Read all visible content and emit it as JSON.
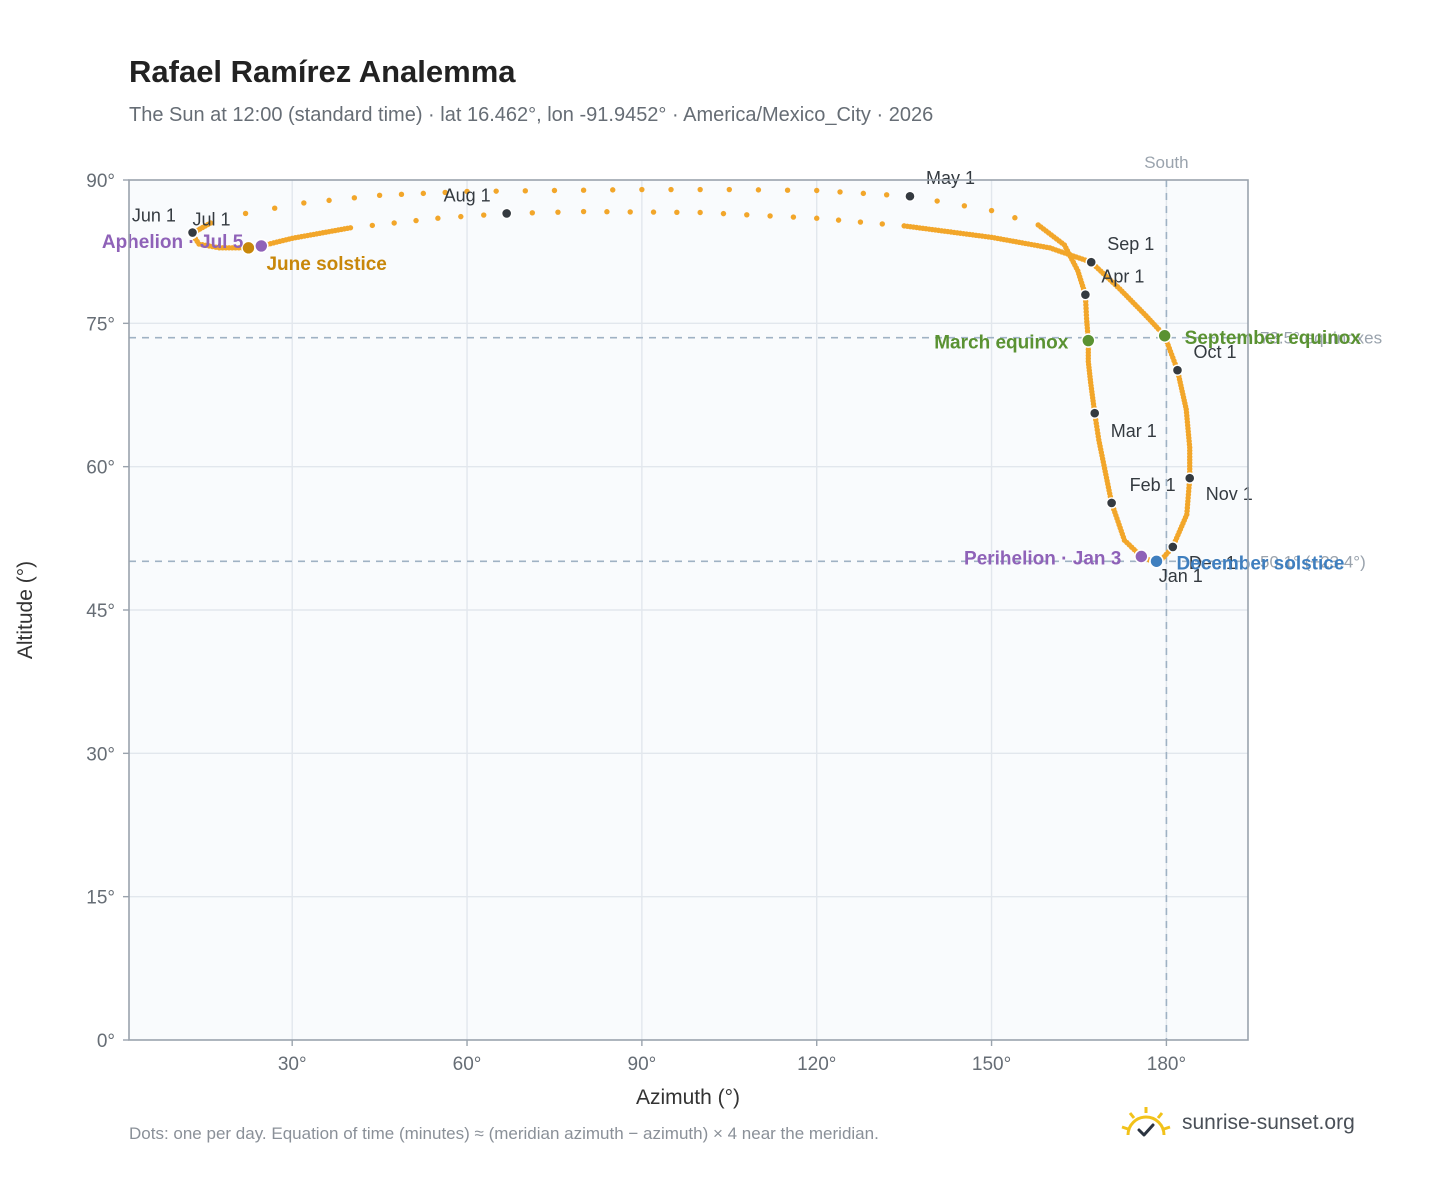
{
  "title": "Rafael Ramírez Analemma",
  "subtitle": "The Sun at 12:00 (standard time) · lat 16.462°, lon -91.9452° · America/Mexico_City · 2026",
  "footnote": "Dots: one per day. Equation of time (minutes) ≈ (meridian azimuth − azimuth) × 4 near the meridian.",
  "brand": {
    "name": "sunrise-sunset.org",
    "logo_icon": "sun-check-icon"
  },
  "colors": {
    "path": "#f2a62a",
    "month_marker": "#343a40",
    "aphelion_perihelion": "#8f62b8",
    "june_solstice": "#c8870a",
    "equinox": "#5a9232",
    "december_solstice": "#3f7fbf",
    "reference": "#9fb2c4",
    "plot_bg": "#f9fbfd"
  },
  "chart_data": {
    "type": "scatter",
    "xlabel": "Azimuth (°)",
    "ylabel": "Altitude (°)",
    "xlim": [
      2,
      194
    ],
    "ylim": [
      0,
      90
    ],
    "xticks": [
      "30°",
      "60°",
      "90°",
      "120°",
      "150°",
      "180°"
    ],
    "yticks": [
      "0°",
      "15°",
      "30°",
      "45°",
      "60°",
      "75°",
      "90°"
    ],
    "grid": true,
    "south_label": "South",
    "south_azimuth": 180,
    "reference_lines": [
      {
        "altitude": 73.5,
        "label": "73.5° equinoxes"
      },
      {
        "altitude": 50.1,
        "label": "50.1° (−23.4°)"
      }
    ],
    "months": [
      {
        "label": "Jan 1",
        "az": 178.0,
        "alt": 50.0
      },
      {
        "label": "Feb 1",
        "az": 170.6,
        "alt": 56.2
      },
      {
        "label": "Mar 1",
        "az": 167.7,
        "alt": 65.6
      },
      {
        "label": "Apr 1",
        "az": 166.1,
        "alt": 78.0
      },
      {
        "label": "May 1",
        "az": 136.0,
        "alt": 88.3
      },
      {
        "label": "Jun 1",
        "az": 12.8,
        "alt": 84.4
      },
      {
        "label": "Jul 1",
        "az": 12.9,
        "alt": 84.5
      },
      {
        "label": "Aug 1",
        "az": 66.8,
        "alt": 86.5
      },
      {
        "label": "Sep 1",
        "az": 167.1,
        "alt": 81.4
      },
      {
        "label": "Oct 1",
        "az": 181.9,
        "alt": 70.1
      },
      {
        "label": "Nov 1",
        "az": 184.0,
        "alt": 58.8
      },
      {
        "label": "Dec 1",
        "az": 181.1,
        "alt": 51.6
      }
    ],
    "events": [
      {
        "label": "March equinox",
        "az": 166.6,
        "alt": 73.2,
        "kind": "equinox"
      },
      {
        "label": "September equinox",
        "az": 179.7,
        "alt": 73.7,
        "kind": "equinox"
      },
      {
        "label": "June solstice",
        "az": 22.5,
        "alt": 82.9,
        "kind": "june_solstice"
      },
      {
        "label": "December solstice",
        "az": 178.3,
        "alt": 50.1,
        "kind": "december_solstice"
      },
      {
        "label": "Aphelion · Jul 5",
        "az": 24.7,
        "alt": 83.1,
        "kind": "aphelion_perihelion"
      },
      {
        "label": "Perihelion · Jan 3",
        "az": 175.7,
        "alt": 50.6,
        "kind": "aphelion_perihelion"
      }
    ],
    "path_points": [
      [
        178.0,
        50.0
      ],
      [
        175.7,
        50.6
      ],
      [
        172.8,
        52.3
      ],
      [
        170.6,
        56.2
      ],
      [
        169.5,
        59.5
      ],
      [
        168.4,
        62.8
      ],
      [
        167.7,
        65.6
      ],
      [
        167.0,
        68.8
      ],
      [
        166.6,
        71.0
      ],
      [
        166.6,
        73.2
      ],
      [
        166.3,
        75.5
      ],
      [
        166.1,
        78.0
      ],
      [
        164.8,
        80.5
      ],
      [
        162.5,
        83.2
      ],
      [
        158.0,
        85.3
      ],
      [
        150.0,
        86.8
      ],
      [
        136.0,
        88.3
      ],
      [
        120.0,
        88.9
      ],
      [
        105.0,
        89.0
      ],
      [
        90.0,
        89.0
      ],
      [
        75.0,
        88.9
      ],
      [
        60.0,
        88.8
      ],
      [
        45.0,
        88.4
      ],
      [
        32.0,
        87.6
      ],
      [
        22.0,
        86.5
      ],
      [
        16.0,
        85.5
      ],
      [
        12.8,
        84.4
      ],
      [
        14.0,
        83.3
      ],
      [
        17.5,
        82.9
      ],
      [
        22.5,
        82.9
      ],
      [
        24.7,
        83.1
      ],
      [
        30.0,
        83.9
      ],
      [
        40.0,
        85.0
      ],
      [
        55.0,
        86.0
      ],
      [
        66.8,
        86.5
      ],
      [
        80.0,
        86.7
      ],
      [
        100.0,
        86.6
      ],
      [
        120.0,
        86.0
      ],
      [
        135.0,
        85.2
      ],
      [
        150.0,
        84.0
      ],
      [
        160.0,
        82.9
      ],
      [
        167.1,
        81.4
      ],
      [
        172.0,
        78.6
      ],
      [
        176.5,
        75.8
      ],
      [
        179.7,
        73.7
      ],
      [
        181.9,
        70.1
      ],
      [
        183.4,
        66.0
      ],
      [
        184.0,
        62.0
      ],
      [
        184.0,
        58.8
      ],
      [
        183.5,
        55.0
      ],
      [
        181.1,
        51.6
      ],
      [
        179.2,
        50.3
      ],
      [
        178.0,
        50.0
      ]
    ]
  }
}
